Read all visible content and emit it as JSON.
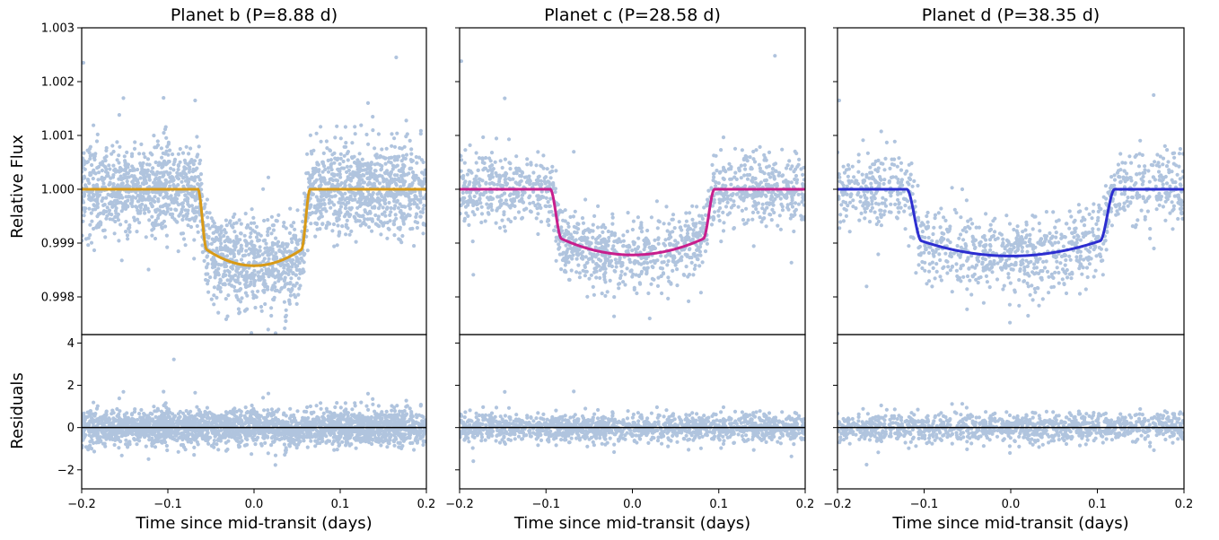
{
  "figure": {
    "ylabel_top": "Relative Flux",
    "ylabel_bottom": "Residuals",
    "scatter_color": "#b0c4de"
  },
  "chart_data": [
    {
      "type": "scatter",
      "title": "Planet b (P=8.88 d)",
      "xlabel": "Time since mid-transit (days)",
      "ylabel": "Relative Flux",
      "xlim": [
        -0.2,
        0.2
      ],
      "ylim": [
        0.9973,
        1.003
      ],
      "xticks": [
        -0.2,
        -0.1,
        0.0,
        0.1,
        0.2
      ],
      "xtick_labels": [
        "−0.2",
        "−0.1",
        "0.0",
        "0.1",
        "0.2"
      ],
      "yticks": [
        0.998,
        0.999,
        1.0,
        1.001,
        1.002,
        1.003
      ],
      "ytick_labels": [
        "0.998",
        "0.999",
        "1.000",
        "1.001",
        "1.002",
        "1.003"
      ],
      "model": {
        "color": "#d89a16",
        "depth": 0.00142,
        "t_ingress_start": 0.065,
        "t_full": 0.055,
        "limb_curve": 0.0003
      },
      "observations": {
        "n_points": 2400,
        "scatter_sd": 0.00042,
        "outlier_max": 1.00245,
        "outlier_min": 0.99765
      },
      "residuals": {
        "ylim": [
          -2.9,
          4.4
        ],
        "yticks": [
          -2,
          0,
          2,
          4
        ],
        "ytick_labels": [
          "−2",
          "0",
          "2",
          "4"
        ],
        "sd": 0.42
      }
    },
    {
      "type": "scatter",
      "title": "Planet c (P=28.58 d)",
      "xlabel": "Time since mid-transit (days)",
      "xlim": [
        -0.2,
        0.2
      ],
      "ylim": [
        0.9973,
        1.003
      ],
      "xticks": [
        -0.2,
        -0.1,
        0.0,
        0.1,
        0.2
      ],
      "xtick_labels": [
        "−0.2",
        "−0.1",
        "0.0",
        "0.1",
        "0.2"
      ],
      "model": {
        "color": "#c81e8c",
        "depth": 0.00122,
        "t_ingress_start": 0.095,
        "t_full": 0.082,
        "limb_curve": 0.0003
      },
      "observations": {
        "n_points": 1400,
        "scatter_sd": 0.00033,
        "outlier_max": 1.00248,
        "outlier_min": 0.9976
      },
      "residuals": {
        "ylim": [
          -2.9,
          4.4
        ],
        "yticks": [
          -2,
          0,
          2,
          4
        ],
        "sd": 0.33
      }
    },
    {
      "type": "scatter",
      "title": "Planet d (P=38.35 d)",
      "xlabel": "Time since mid-transit (days)",
      "xlim": [
        -0.2,
        0.2
      ],
      "ylim": [
        0.9973,
        1.003
      ],
      "xticks": [
        -0.2,
        -0.1,
        0.0,
        0.1,
        0.2
      ],
      "xtick_labels": [
        "−0.2",
        "−0.1",
        "0.0",
        "0.1",
        "0.2"
      ],
      "model": {
        "color": "#2c2ed0",
        "depth": 0.00124,
        "t_ingress_start": 0.12,
        "t_full": 0.103,
        "limb_curve": 0.00028
      },
      "observations": {
        "n_points": 1100,
        "scatter_sd": 0.00036,
        "outlier_max": 1.00175,
        "outlier_min": 0.99765
      },
      "residuals": {
        "ylim": [
          -2.9,
          4.4
        ],
        "yticks": [
          -2,
          0,
          2,
          4
        ],
        "sd": 0.35
      }
    }
  ]
}
